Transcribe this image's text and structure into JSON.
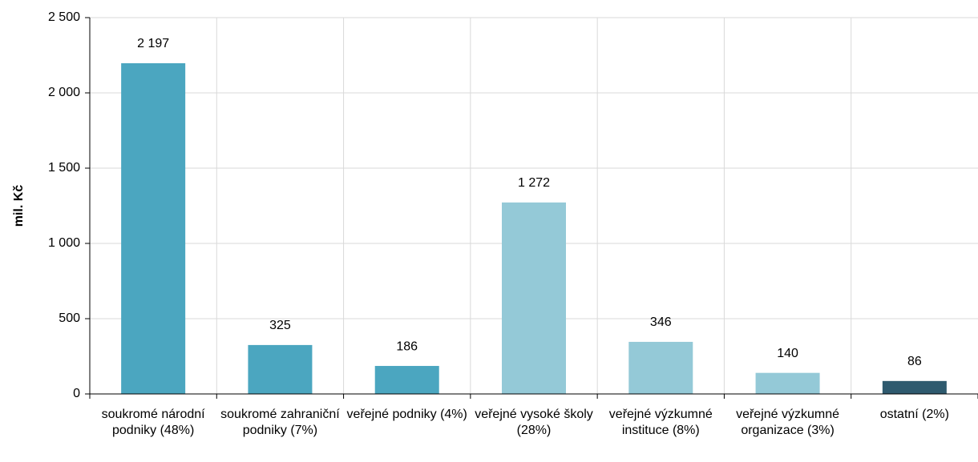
{
  "chart_data": {
    "type": "bar",
    "y_label": "mil. Kč",
    "categories": [
      "soukromé národní podniky (48%)",
      "soukromé zahraniční podniky (7%)",
      "veřejné podniky (4%)",
      "veřejné vysoké školy (28%)",
      "veřejné výzkumné instituce (8%)",
      "veřejné výzkumné organizace (3%)",
      "ostatní (2%)"
    ],
    "values": [
      2197,
      325,
      186,
      1272,
      346,
      140,
      86
    ],
    "value_labels": [
      "2 197",
      "325",
      "186",
      "1 272",
      "346",
      "140",
      "86"
    ],
    "colors": [
      "#4ba6c0",
      "#4ba6c0",
      "#4ba6c0",
      "#94c9d7",
      "#94c9d7",
      "#94c9d7",
      "#2e5a6e"
    ],
    "ylim": [
      0,
      2500
    ],
    "yticks": [
      0,
      500,
      {
        "value": 1000,
        "label": "1 000"
      },
      {
        "value": 1500,
        "label": "1 500"
      },
      {
        "value": 2000,
        "label": "2 000"
      },
      {
        "value": 2500,
        "label": "2 500"
      }
    ],
    "grid": true
  }
}
